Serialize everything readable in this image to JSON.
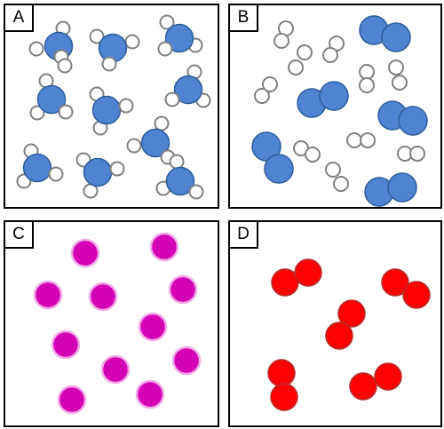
{
  "panels": [
    {
      "label": "A",
      "contents": "water-molecules",
      "count": 9
    },
    {
      "label": "B",
      "contents": "mixture-of-diatomic-molecules",
      "count": 15
    },
    {
      "label": "C",
      "contents": "single-atoms",
      "count": 11
    },
    {
      "label": "D",
      "contents": "diatomic-molecules",
      "count": 5
    }
  ],
  "colors": {
    "blue_atom": "#4f84d2",
    "blue_stroke": "#2c5d9a",
    "white_atom": "#ffffff",
    "white_stroke": "#808080",
    "magenta_atom": "#d400b4",
    "magenta_stroke": "#f0a8e6",
    "red_atom": "#ff0000",
    "red_stroke": "#b03030"
  }
}
